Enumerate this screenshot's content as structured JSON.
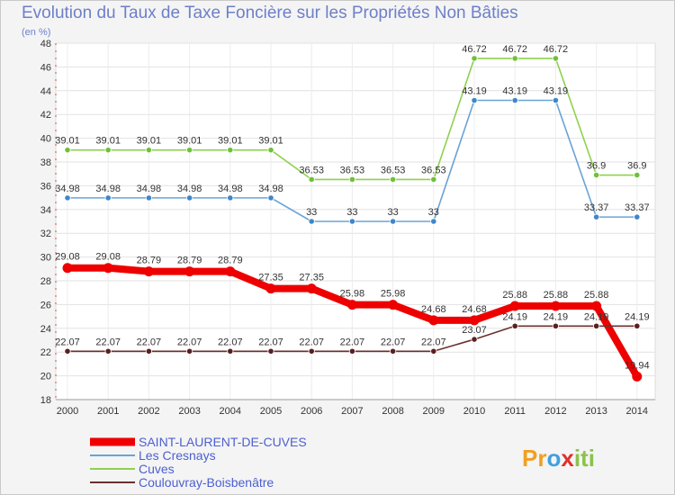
{
  "chart_data": {
    "type": "line",
    "title": "Evolution du Taux de Taxe Foncière sur les Propriétés Non Bâties",
    "subtitle": "(en %)",
    "xlabel": "",
    "ylabel": "",
    "ylim": [
      18,
      48
    ],
    "yticks": [
      18,
      20,
      22,
      24,
      26,
      28,
      30,
      32,
      34,
      36,
      38,
      40,
      42,
      44,
      46,
      48
    ],
    "categories": [
      "2000",
      "2001",
      "2002",
      "2003",
      "2004",
      "2005",
      "2006",
      "2007",
      "2008",
      "2009",
      "2010",
      "2011",
      "2012",
      "2013",
      "2014"
    ],
    "series": [
      {
        "name": "Cuves",
        "color": "#8fd14f",
        "marker": "#6fc03a",
        "values": [
          39.01,
          39.01,
          39.01,
          39.01,
          39.01,
          39.01,
          36.53,
          36.53,
          36.53,
          36.53,
          46.72,
          46.72,
          46.72,
          36.9,
          36.9
        ],
        "labels": [
          "39.01",
          "39.01",
          "39.01",
          "39.01",
          "39.01",
          "39.01",
          "36.53",
          "36.53",
          "36.53",
          "36.53",
          "46.72",
          "46.72",
          "46.72",
          "36.9",
          "36.9"
        ]
      },
      {
        "name": "Les Cresnays",
        "color": "#6aa3d5",
        "marker": "#3f86c9",
        "values": [
          34.98,
          34.98,
          34.98,
          34.98,
          34.98,
          34.98,
          33,
          33,
          33,
          33,
          43.19,
          43.19,
          43.19,
          33.37,
          33.37
        ],
        "labels": [
          "34.98",
          "34.98",
          "34.98",
          "34.98",
          "34.98",
          "34.98",
          "33",
          "33",
          "33",
          "33",
          "43.19",
          "43.19",
          "43.19",
          "33.37",
          "33.37"
        ]
      },
      {
        "name": "SAINT-LAURENT-DE-CUVES",
        "color": "#ee0000",
        "marker": "#ee0000",
        "values": [
          29.08,
          29.08,
          28.79,
          28.79,
          28.79,
          27.35,
          27.35,
          25.98,
          25.98,
          24.68,
          24.68,
          25.88,
          25.88,
          25.88,
          19.94
        ],
        "labels": [
          "29.08",
          "29.08",
          "28.79",
          "28.79",
          "28.79",
          "27.35",
          "27.35",
          "25.98",
          "25.98",
          "24.68",
          "24.68",
          "25.88",
          "25.88",
          "25.88",
          "19.94"
        ]
      },
      {
        "name": "Coulouvray-Boisbenâtre",
        "color": "#6b3030",
        "marker": "#5a1f1f",
        "values": [
          22.07,
          22.07,
          22.07,
          22.07,
          22.07,
          22.07,
          22.07,
          22.07,
          22.07,
          22.07,
          23.07,
          24.19,
          24.19,
          24.19,
          24.19
        ],
        "labels": [
          "22.07",
          "22.07",
          "22.07",
          "22.07",
          "22.07",
          "22.07",
          "22.07",
          "22.07",
          "22.07",
          "22.07",
          "23.07",
          "24.19",
          "24.19",
          "24.19",
          "24.19"
        ]
      }
    ],
    "legend": {
      "placement": "bottom-left",
      "order": [
        "SAINT-LAURENT-DE-CUVES",
        "Les Cresnays",
        "Cuves",
        "Coulouvray-Boisbenâtre"
      ]
    },
    "grid": true,
    "brand": {
      "prefix": "Pr",
      "middle": "o",
      "x": "x",
      "suffix": "iti"
    }
  }
}
